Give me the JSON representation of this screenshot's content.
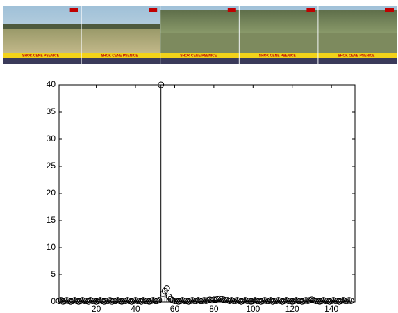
{
  "chart_data": {
    "type": "stem",
    "frame_caption": "SHOK CENE PSENICE",
    "x": [
      1,
      2,
      3,
      4,
      5,
      6,
      7,
      8,
      9,
      10,
      11,
      12,
      13,
      14,
      15,
      16,
      17,
      18,
      19,
      20,
      21,
      22,
      23,
      24,
      25,
      26,
      27,
      28,
      29,
      30,
      31,
      32,
      33,
      34,
      35,
      36,
      37,
      38,
      39,
      40,
      41,
      42,
      43,
      44,
      45,
      46,
      47,
      48,
      49,
      50,
      51,
      52,
      53,
      54,
      55,
      56,
      57,
      58,
      59,
      60,
      61,
      62,
      63,
      64,
      65,
      66,
      67,
      68,
      69,
      70,
      71,
      72,
      73,
      74,
      75,
      76,
      77,
      78,
      79,
      80,
      81,
      82,
      83,
      84,
      85,
      86,
      87,
      88,
      89,
      90,
      91,
      92,
      93,
      94,
      95,
      96,
      97,
      98,
      99,
      100,
      101,
      102,
      103,
      104,
      105,
      106,
      107,
      108,
      109,
      110,
      111,
      112,
      113,
      114,
      115,
      116,
      117,
      118,
      119,
      120,
      121,
      122,
      123,
      124,
      125,
      126,
      127,
      128,
      129,
      130,
      131,
      132,
      133,
      134,
      135,
      136,
      137,
      138,
      139,
      140,
      141,
      142,
      143,
      144,
      145,
      146,
      147,
      148,
      149,
      150
    ],
    "values": [
      0.2,
      0.3,
      0.1,
      0.2,
      0.3,
      0.2,
      0.1,
      0.2,
      0.3,
      0.2,
      0.1,
      0.2,
      0.3,
      0.2,
      0.2,
      0.1,
      0.3,
      0.2,
      0.2,
      0.1,
      0.2,
      0.3,
      0.2,
      0.1,
      0.2,
      0.2,
      0.3,
      0.1,
      0.2,
      0.2,
      0.3,
      0.2,
      0.1,
      0.2,
      0.2,
      0.3,
      0.2,
      0.1,
      0.2,
      0.3,
      0.2,
      0.2,
      0.1,
      0.3,
      0.2,
      0.2,
      0.1,
      0.2,
      0.3,
      0.2,
      0.2,
      0.3,
      40,
      1.5,
      2.0,
      2.5,
      1.0,
      0.5,
      0.3,
      0.2,
      0.2,
      0.1,
      0.2,
      0.3,
      0.2,
      0.2,
      0.1,
      0.2,
      0.3,
      0.2,
      0.2,
      0.3,
      0.2,
      0.2,
      0.3,
      0.2,
      0.3,
      0.4,
      0.3,
      0.4,
      0.4,
      0.5,
      0.6,
      0.5,
      0.4,
      0.3,
      0.3,
      0.2,
      0.3,
      0.2,
      0.2,
      0.3,
      0.2,
      0.1,
      0.2,
      0.3,
      0.2,
      0.2,
      0.1,
      0.2,
      0.3,
      0.2,
      0.2,
      0.1,
      0.2,
      0.3,
      0.2,
      0.2,
      0.3,
      0.1,
      0.2,
      0.2,
      0.3,
      0.2,
      0.1,
      0.2,
      0.3,
      0.2,
      0.2,
      0.1,
      0.2,
      0.3,
      0.2,
      0.2,
      0.1,
      0.2,
      0.3,
      0.2,
      0.3,
      0.4,
      0.3,
      0.2,
      0.2,
      0.1,
      0.2,
      0.3,
      0.2,
      0.2,
      0.1,
      0.2,
      0.3,
      0.2,
      0.2,
      0.1,
      0.2,
      0.3,
      0.2,
      0.2,
      0.3,
      0.2
    ],
    "color": "#000000",
    "xlim": [
      1,
      152
    ],
    "xticks": [
      20,
      40,
      60,
      80,
      100,
      120,
      140
    ],
    "ylim": [
      0,
      40
    ],
    "yticks": [
      0,
      5,
      10,
      15,
      20,
      25,
      30,
      35,
      40
    ],
    "grid": false
  }
}
